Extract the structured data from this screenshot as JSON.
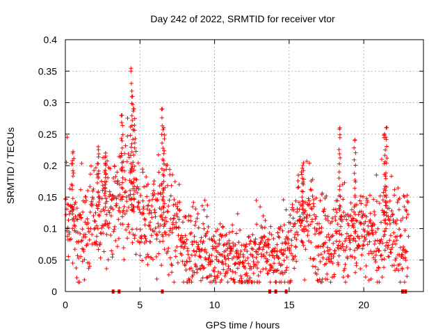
{
  "chart_data": {
    "type": "scatter",
    "title": "Day 242 of 2022, SRMTID for receiver vtor",
    "xlabel": "GPS time / hours",
    "ylabel": "SRMTID / TECUs",
    "xlim": [
      0,
      24
    ],
    "ylim": [
      0,
      0.4
    ],
    "xticks": [
      0,
      5,
      10,
      15,
      20
    ],
    "yticks": [
      0,
      0.05,
      0.1,
      0.15,
      0.2,
      0.25,
      0.3,
      0.35,
      0.4
    ],
    "ytick_labels": [
      "0",
      "0.05",
      "0.1",
      "0.15",
      "0.2",
      "0.25",
      "0.3",
      "0.35",
      "0.4"
    ],
    "grid": true,
    "marker": "+",
    "color": "#ff0000",
    "trend": {
      "x": [
        0.0,
        0.5,
        1.0,
        1.5,
        2.0,
        2.5,
        3.0,
        3.5,
        4.0,
        4.5,
        5.0,
        5.5,
        6.0,
        6.5,
        7.0,
        7.5,
        8.0,
        8.5,
        9.0,
        9.5,
        10.0,
        10.5,
        11.0,
        11.5,
        12.0,
        12.5,
        13.0,
        13.5,
        14.0,
        14.5,
        15.0,
        15.5,
        16.0,
        16.5,
        17.0,
        17.5,
        18.0,
        18.5,
        19.0,
        19.5,
        20.0,
        20.5,
        21.0,
        21.5,
        22.0,
        22.5,
        23.0
      ],
      "y": [
        0.12,
        0.11,
        0.1,
        0.1,
        0.12,
        0.13,
        0.12,
        0.13,
        0.15,
        0.14,
        0.13,
        0.11,
        0.12,
        0.12,
        0.11,
        0.1,
        0.08,
        0.07,
        0.07,
        0.07,
        0.06,
        0.06,
        0.06,
        0.05,
        0.04,
        0.05,
        0.07,
        0.08,
        0.05,
        0.05,
        0.08,
        0.11,
        0.12,
        0.11,
        0.1,
        0.08,
        0.08,
        0.1,
        0.09,
        0.09,
        0.09,
        0.08,
        0.09,
        0.1,
        0.09,
        0.08,
        0.1
      ]
    },
    "spikes": [
      {
        "x": 0.5,
        "y": 0.22
      },
      {
        "x": 2.2,
        "y": 0.23
      },
      {
        "x": 2.7,
        "y": 0.22
      },
      {
        "x": 3.8,
        "y": 0.28
      },
      {
        "x": 4.4,
        "y": 0.35
      },
      {
        "x": 4.5,
        "y": 0.31
      },
      {
        "x": 4.6,
        "y": 0.29
      },
      {
        "x": 6.5,
        "y": 0.29
      },
      {
        "x": 6.6,
        "y": 0.26
      },
      {
        "x": 15.9,
        "y": 0.2
      },
      {
        "x": 18.4,
        "y": 0.26
      },
      {
        "x": 19.4,
        "y": 0.24
      },
      {
        "x": 21.4,
        "y": 0.25
      },
      {
        "x": 21.5,
        "y": 0.26
      }
    ],
    "zero_markers_x": [
      3.2,
      3.6,
      6.5,
      13.7,
      14.1,
      14.8,
      22.6,
      22.8
    ]
  }
}
